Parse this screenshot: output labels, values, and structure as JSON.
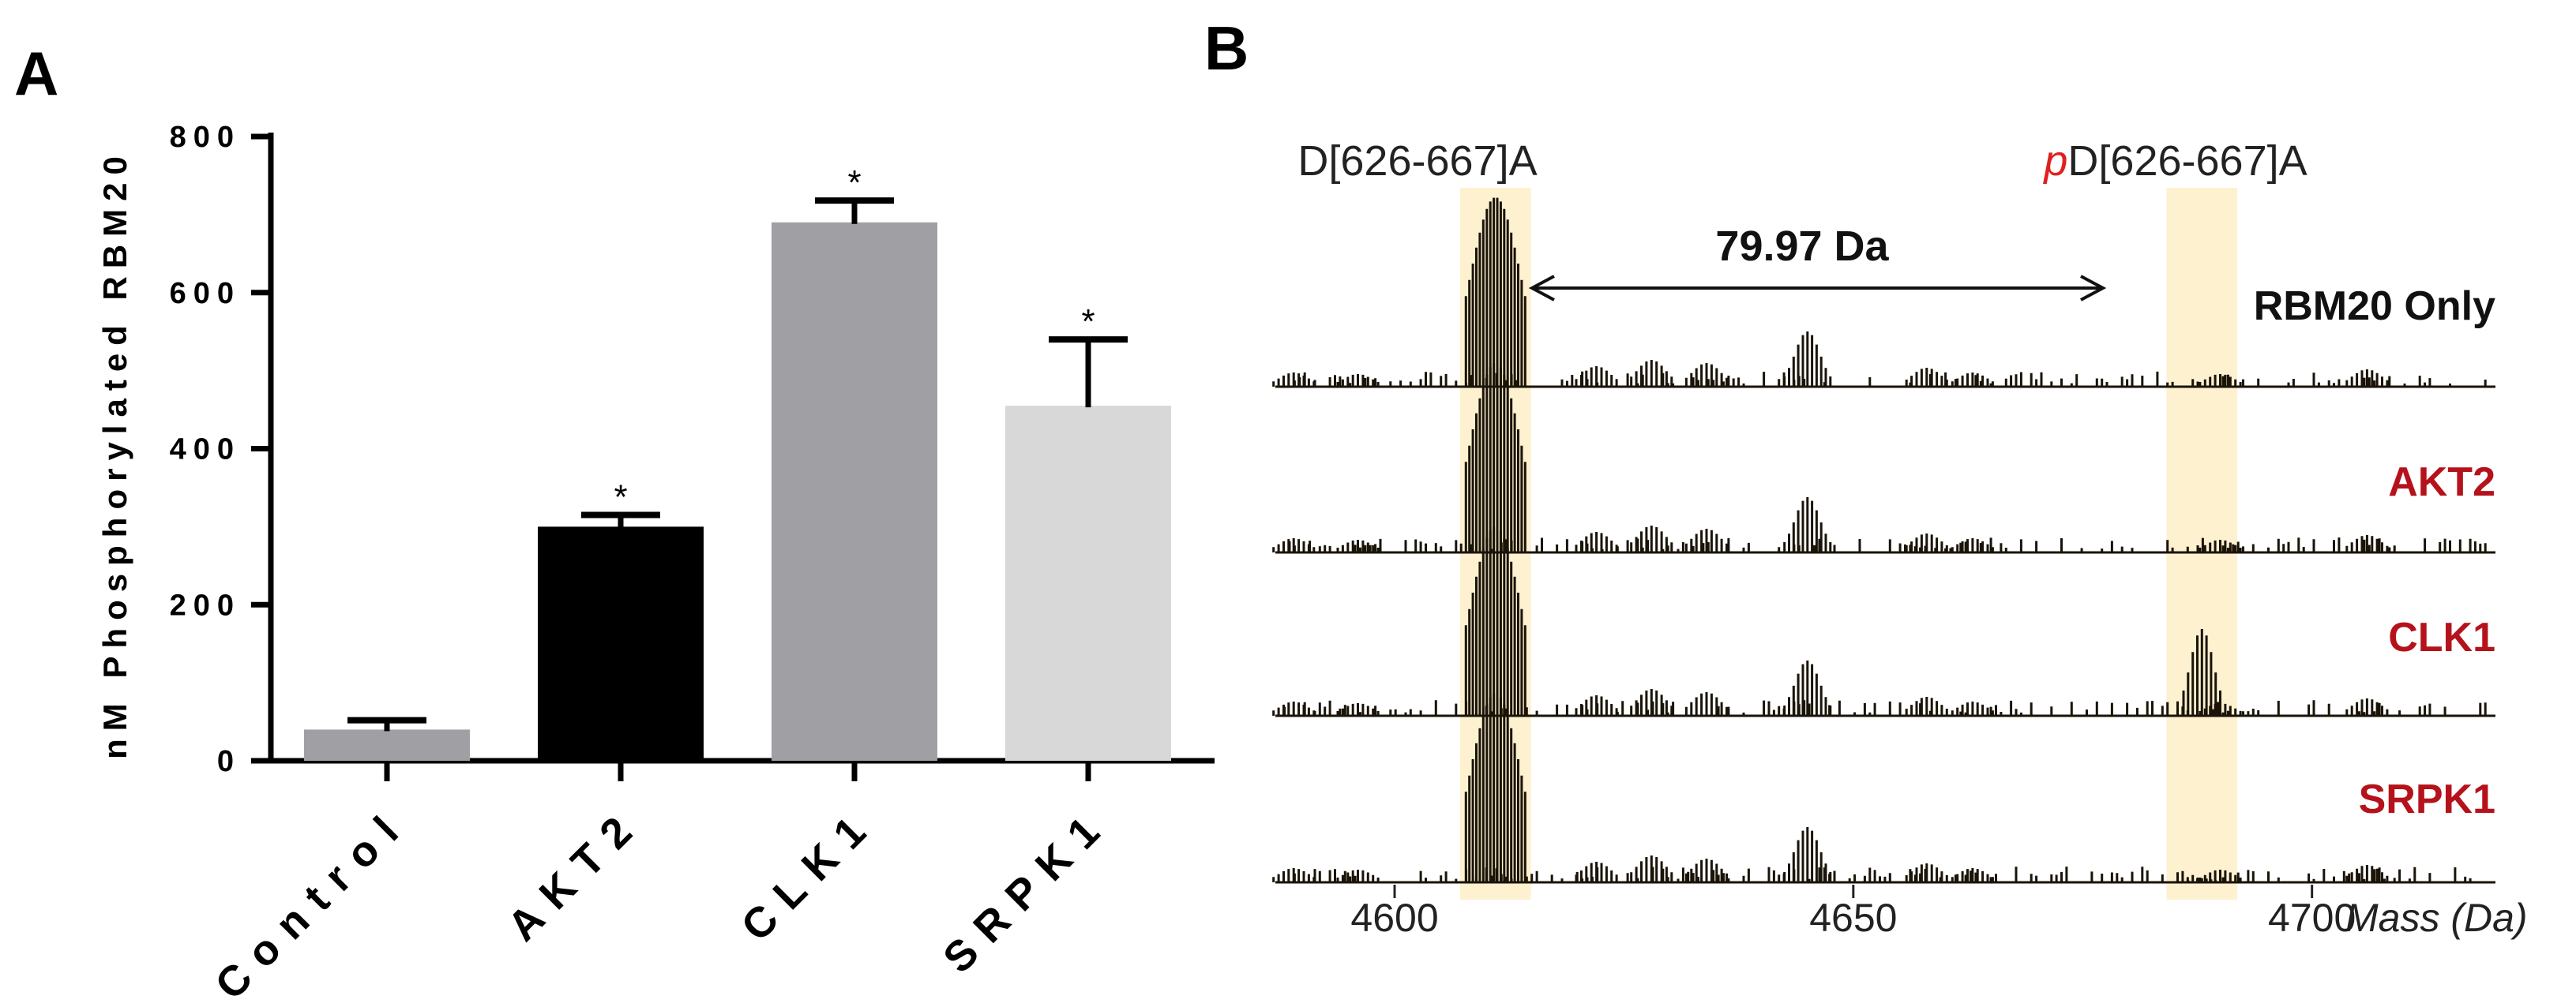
{
  "panel_a": {
    "letter": "A"
  },
  "panel_b": {
    "letter": "B"
  },
  "colors": {
    "control": "#a0a0a4",
    "AKT2": "#000000",
    "CLK1": "#a0a0a4",
    "SRPK1": "#d8d8d8",
    "highlight": "#fdf1d0",
    "trace": "#1a1408",
    "label_red": "#b5121b",
    "label_black": "#111111",
    "phospho_p": "#e02020"
  },
  "chart_data": [
    {
      "type": "bar",
      "title": "",
      "xlabel": "",
      "ylabel": "nM Phosphorylated RBM20",
      "ylim": [
        0,
        800
      ],
      "yticks": [
        "0",
        "200",
        "400",
        "600",
        "800"
      ],
      "categories": [
        "Control",
        "AKT2",
        "CLK1",
        "SRPK1"
      ],
      "values": [
        40,
        300,
        690,
        455
      ],
      "errors": [
        12,
        15,
        28,
        85
      ],
      "significance": [
        "",
        "*",
        "*",
        "*"
      ]
    },
    {
      "type": "line",
      "title": "",
      "xlabel": "Mass (Da)",
      "xlim": [
        4587,
        4720
      ],
      "xticks": [
        "4600",
        "4650",
        "4700"
      ],
      "peak_labels": {
        "unmodified": "D[626-667]A",
        "phospho_prefix": "p",
        "phospho": "D[626-667]A"
      },
      "mass_shift": "79.97 Da",
      "highlight_ranges": [
        [
          4608,
          4614
        ],
        [
          4685,
          4691
        ]
      ],
      "series": [
        {
          "name": "RBM20 Only",
          "phospho_intensity": 0.0
        },
        {
          "name": "AKT2",
          "phospho_intensity": 0.0
        },
        {
          "name": "CLK1",
          "phospho_intensity": 0.55
        },
        {
          "name": "SRPK1",
          "phospho_intensity": 0.12
        }
      ]
    }
  ]
}
